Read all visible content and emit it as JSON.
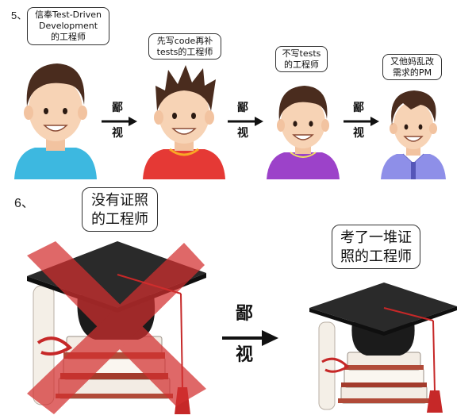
{
  "section5": {
    "number": "5、",
    "persons": [
      {
        "caption_lines": [
          "信奉Test-Driven",
          "Development",
          "的工程师"
        ],
        "shirt": "#3db8e0"
      },
      {
        "caption_lines": [
          "先写code再补",
          "tests的工程师"
        ],
        "shirt": "#e53935"
      },
      {
        "caption_lines": [
          "不写tests",
          "的工程师"
        ],
        "shirt": "#9c42c9"
      },
      {
        "caption_lines": [
          "又他妈乱改",
          "需求的PM"
        ],
        "shirt": "#8e8fe8"
      }
    ],
    "arrow_label": [
      "鄙",
      "视"
    ]
  },
  "section6": {
    "number": "6、",
    "left_caption_lines": [
      "没有证照",
      "的工程师"
    ],
    "right_caption_lines": [
      "考了一堆证",
      "照的工程师"
    ],
    "arrow_label": [
      "鄙",
      "视"
    ],
    "cross_color": "#d32f2f"
  },
  "colors": {
    "skin": "#f7d3b5",
    "hair": "#4a2c1e",
    "cap": "#1b1b1b",
    "tassel": "#c62828",
    "books": "#a33b2c"
  }
}
